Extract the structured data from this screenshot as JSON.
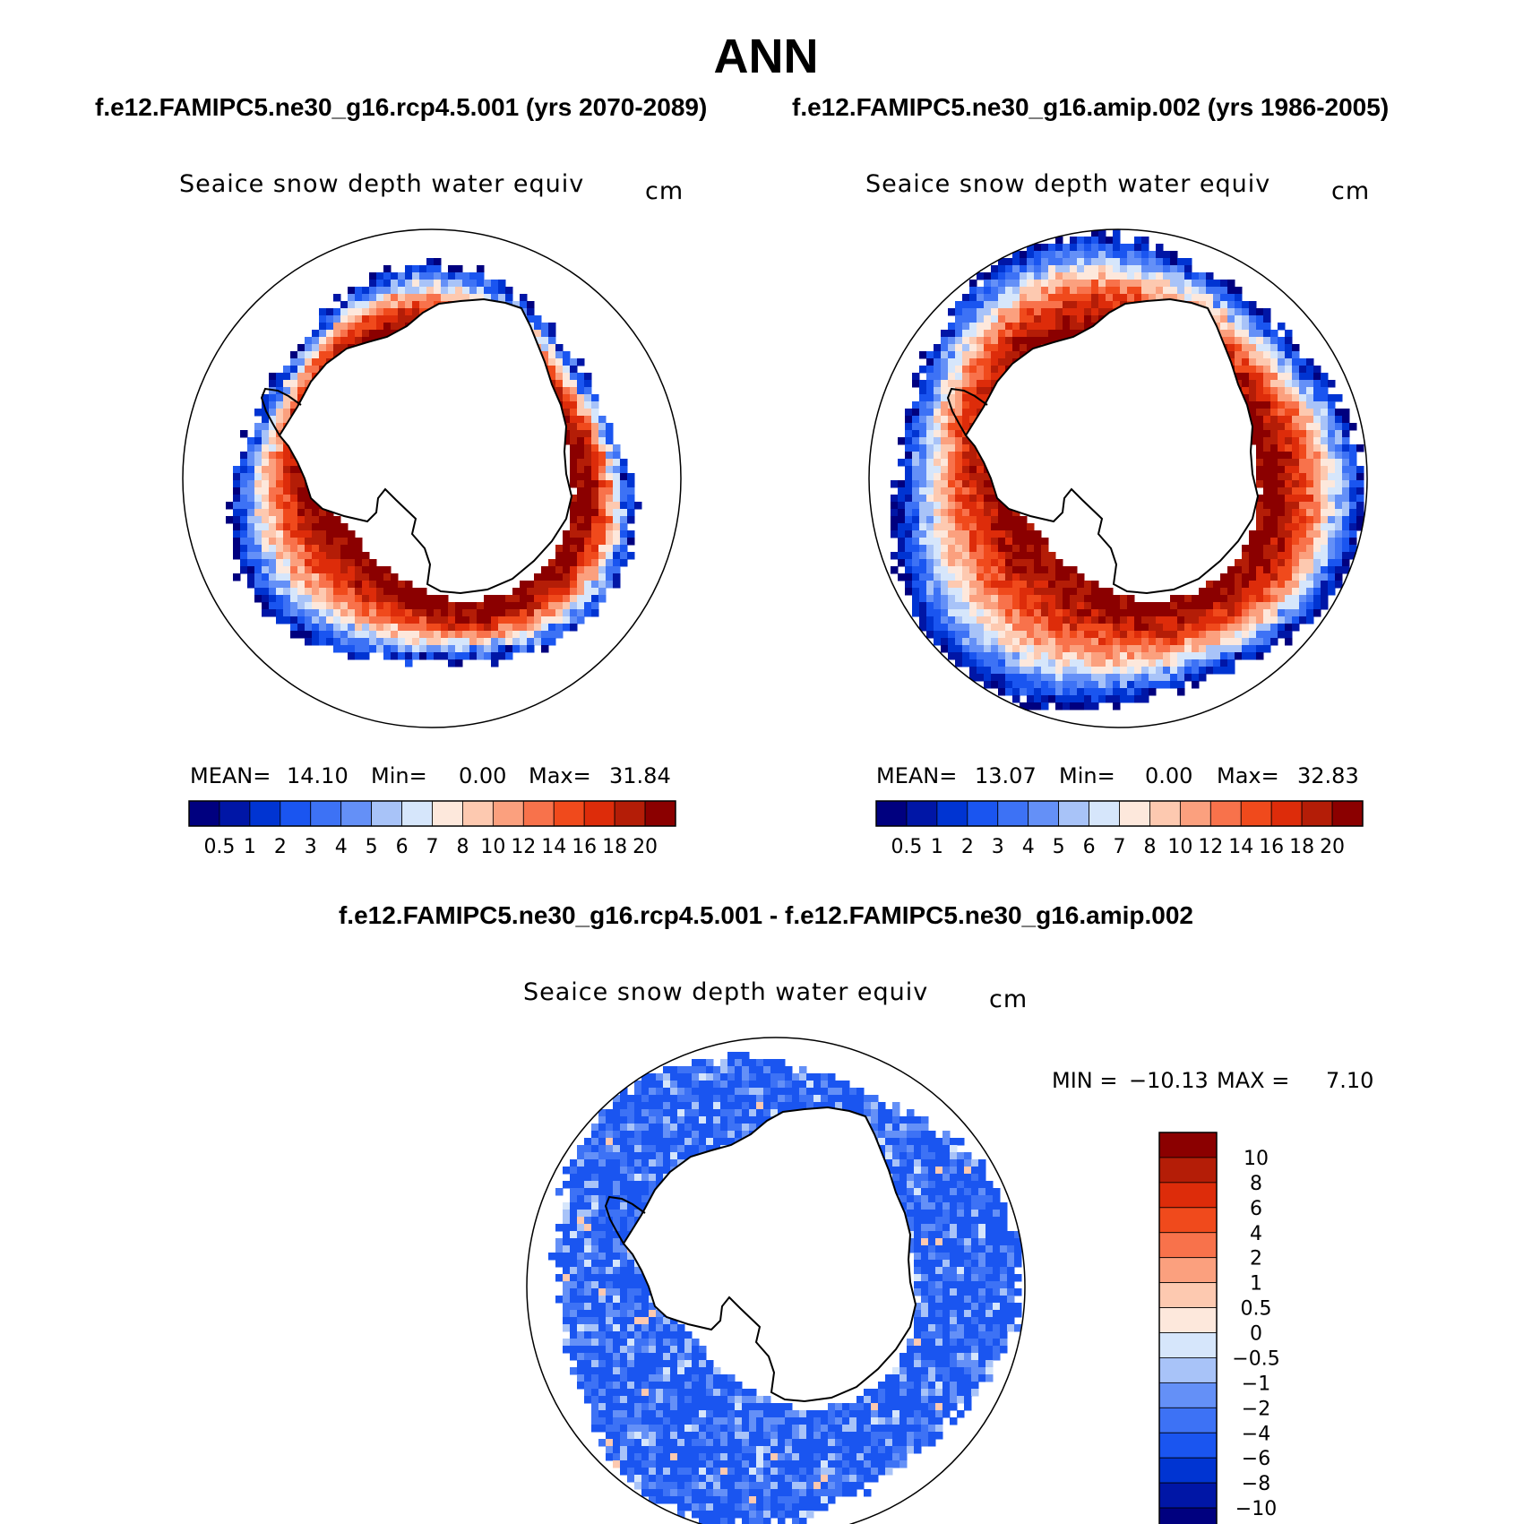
{
  "page": {
    "title": "ANN",
    "case_a": "f.e12.FAMIPC5.ne30_g16.rcp4.5.001 (yrs 2070-2089)",
    "case_b": "f.e12.FAMIPC5.ne30_g16.amip.002 (yrs 1986-2005)",
    "diff_title": "f.e12.FAMIPC5.ne30_g16.rcp4.5.001 - f.e12.FAMIPC5.ne30_g16.amip.002"
  },
  "chart_data": [
    {
      "type": "heatmap",
      "projection": "south-polar-stereographic",
      "variable": "Seaice snow depth water equiv",
      "units": "cm",
      "stats": {
        "mean_label": "MEAN=",
        "mean": "14.10",
        "min_label": "Min=",
        "min": "0.00",
        "max_label": "Max=",
        "max": "31.84"
      },
      "colorbar": {
        "orientation": "horizontal",
        "levels": [
          "0.5",
          "1",
          "2",
          "3",
          "4",
          "5",
          "6",
          "7",
          "8",
          "10",
          "12",
          "14",
          "16",
          "18",
          "20"
        ],
        "colors": [
          "#00007f",
          "#0016a6",
          "#0034d2",
          "#1a55f0",
          "#3d72f5",
          "#6490f7",
          "#a8c3f8",
          "#d6e6fb",
          "#fde8dc",
          "#fdc9b0",
          "#fba07e",
          "#f8724b",
          "#f04a1c",
          "#dd2c0a",
          "#b41d07",
          "#8b0000"
        ]
      },
      "ice_extent": {
        "inner_rank": 0.38,
        "outer_rank": 0.8
      },
      "grid": false,
      "legend": "bottom"
    },
    {
      "type": "heatmap",
      "projection": "south-polar-stereographic",
      "variable": "Seaice snow depth water equiv",
      "units": "cm",
      "stats": {
        "mean_label": "MEAN=",
        "mean": "13.07",
        "min_label": "Min=",
        "min": "0.00",
        "max_label": "Max=",
        "max": "32.83"
      },
      "colorbar": {
        "orientation": "horizontal",
        "levels": [
          "0.5",
          "1",
          "2",
          "3",
          "4",
          "5",
          "6",
          "7",
          "8",
          "10",
          "12",
          "14",
          "16",
          "18",
          "20"
        ],
        "colors": [
          "#00007f",
          "#0016a6",
          "#0034d2",
          "#1a55f0",
          "#3d72f5",
          "#6490f7",
          "#a8c3f8",
          "#d6e6fb",
          "#fde8dc",
          "#fdc9b0",
          "#fba07e",
          "#f8724b",
          "#f04a1c",
          "#dd2c0a",
          "#b41d07",
          "#8b0000"
        ]
      },
      "ice_extent": {
        "inner_rank": 0.38,
        "outer_rank": 0.94
      },
      "grid": false,
      "legend": "bottom"
    },
    {
      "type": "heatmap",
      "projection": "south-polar-stereographic",
      "variable": "Seaice snow depth water equiv",
      "units": "cm",
      "stats": {
        "min_label": "MIN =",
        "min": "−10.13",
        "max_label": "MAX =",
        "max": "7.10"
      },
      "colorbar": {
        "orientation": "vertical",
        "levels": [
          "10",
          "8",
          "6",
          "4",
          "2",
          "1",
          "0.5",
          "0",
          "−0.5",
          "−1",
          "−2",
          "−4",
          "−6",
          "−8",
          "−10"
        ],
        "colors": [
          "#8b0000",
          "#b41d07",
          "#dd2c0a",
          "#f04a1c",
          "#f8724b",
          "#fba07e",
          "#fdc9b0",
          "#fde8dc",
          "#d6e6fb",
          "#a8c3f8",
          "#6490f7",
          "#3d72f5",
          "#1a55f0",
          "#0034d2",
          "#0016a6",
          "#00007f"
        ]
      },
      "ice_extent": {
        "inner_rank": 0.38,
        "outer_rank": 0.93
      },
      "grid": false,
      "legend": "right"
    }
  ]
}
